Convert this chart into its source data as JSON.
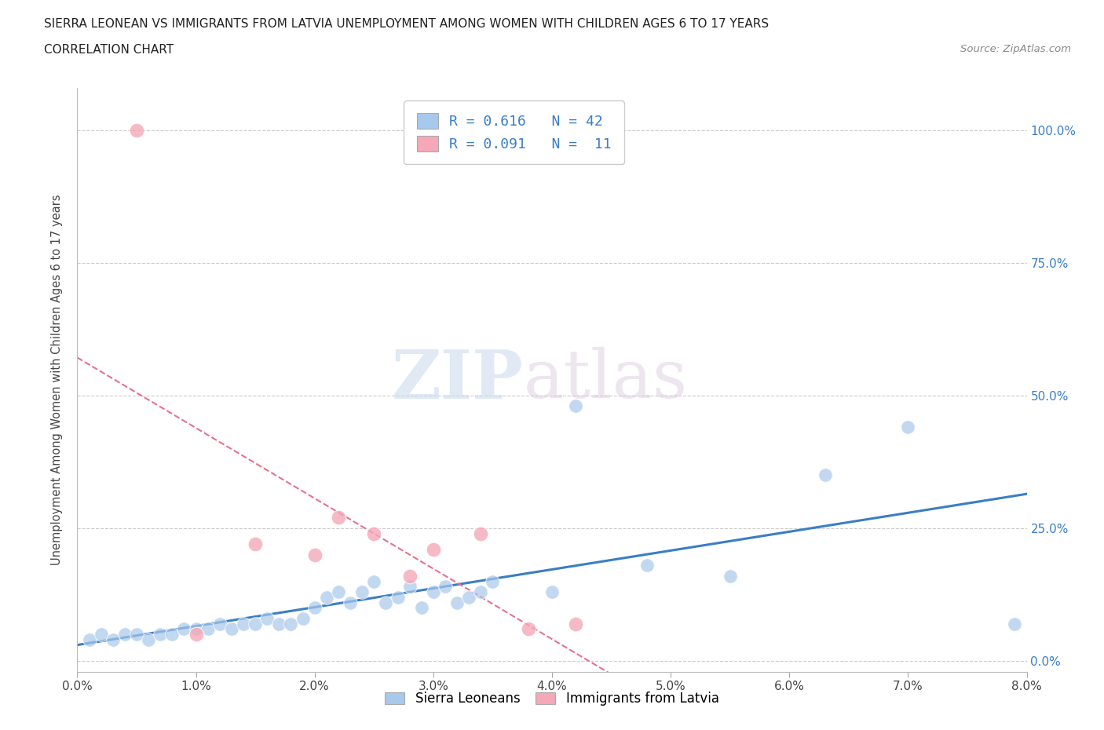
{
  "title_line1": "SIERRA LEONEAN VS IMMIGRANTS FROM LATVIA UNEMPLOYMENT AMONG WOMEN WITH CHILDREN AGES 6 TO 17 YEARS",
  "title_line2": "CORRELATION CHART",
  "source": "Source: ZipAtlas.com",
  "xlabel_ticks": [
    "0.0%",
    "1.0%",
    "2.0%",
    "3.0%",
    "4.0%",
    "5.0%",
    "6.0%",
    "7.0%",
    "8.0%"
  ],
  "ylabel": "Unemployment Among Women with Children Ages 6 to 17 years",
  "ytick_labels_right": [
    "0.0%",
    "25.0%",
    "50.0%",
    "75.0%",
    "100.0%"
  ],
  "ytick_values": [
    0.0,
    0.25,
    0.5,
    0.75,
    1.0
  ],
  "xtick_values": [
    0.0,
    0.01,
    0.02,
    0.03,
    0.04,
    0.05,
    0.06,
    0.07,
    0.08
  ],
  "xlim": [
    0.0,
    0.08
  ],
  "ylim": [
    -0.02,
    1.08
  ],
  "legend_r1": "R = 0.616   N = 42",
  "legend_r2": "R = 0.091   N =  11",
  "blue_color": "#A8C8EC",
  "pink_color": "#F4A8B8",
  "blue_line_color": "#3A7EC6",
  "pink_line_color": "#E87090",
  "watermark_zip": "ZIP",
  "watermark_atlas": "atlas",
  "sierra_x": [
    0.001,
    0.002,
    0.003,
    0.004,
    0.005,
    0.006,
    0.007,
    0.008,
    0.009,
    0.01,
    0.011,
    0.012,
    0.013,
    0.014,
    0.015,
    0.016,
    0.017,
    0.018,
    0.019,
    0.02,
    0.021,
    0.022,
    0.023,
    0.024,
    0.025,
    0.026,
    0.027,
    0.028,
    0.029,
    0.03,
    0.031,
    0.032,
    0.033,
    0.034,
    0.035,
    0.04,
    0.042,
    0.048,
    0.055,
    0.063,
    0.07,
    0.079
  ],
  "sierra_y": [
    0.04,
    0.05,
    0.04,
    0.05,
    0.05,
    0.04,
    0.05,
    0.05,
    0.06,
    0.06,
    0.06,
    0.07,
    0.06,
    0.07,
    0.07,
    0.08,
    0.07,
    0.07,
    0.08,
    0.1,
    0.12,
    0.13,
    0.11,
    0.13,
    0.15,
    0.11,
    0.12,
    0.14,
    0.1,
    0.13,
    0.14,
    0.11,
    0.12,
    0.13,
    0.15,
    0.13,
    0.48,
    0.18,
    0.16,
    0.35,
    0.44,
    0.07
  ],
  "latvia_x": [
    0.005,
    0.01,
    0.015,
    0.02,
    0.022,
    0.025,
    0.028,
    0.03,
    0.034,
    0.038,
    0.042
  ],
  "latvia_y": [
    1.0,
    0.05,
    0.22,
    0.2,
    0.27,
    0.24,
    0.16,
    0.21,
    0.24,
    0.06,
    0.07
  ]
}
